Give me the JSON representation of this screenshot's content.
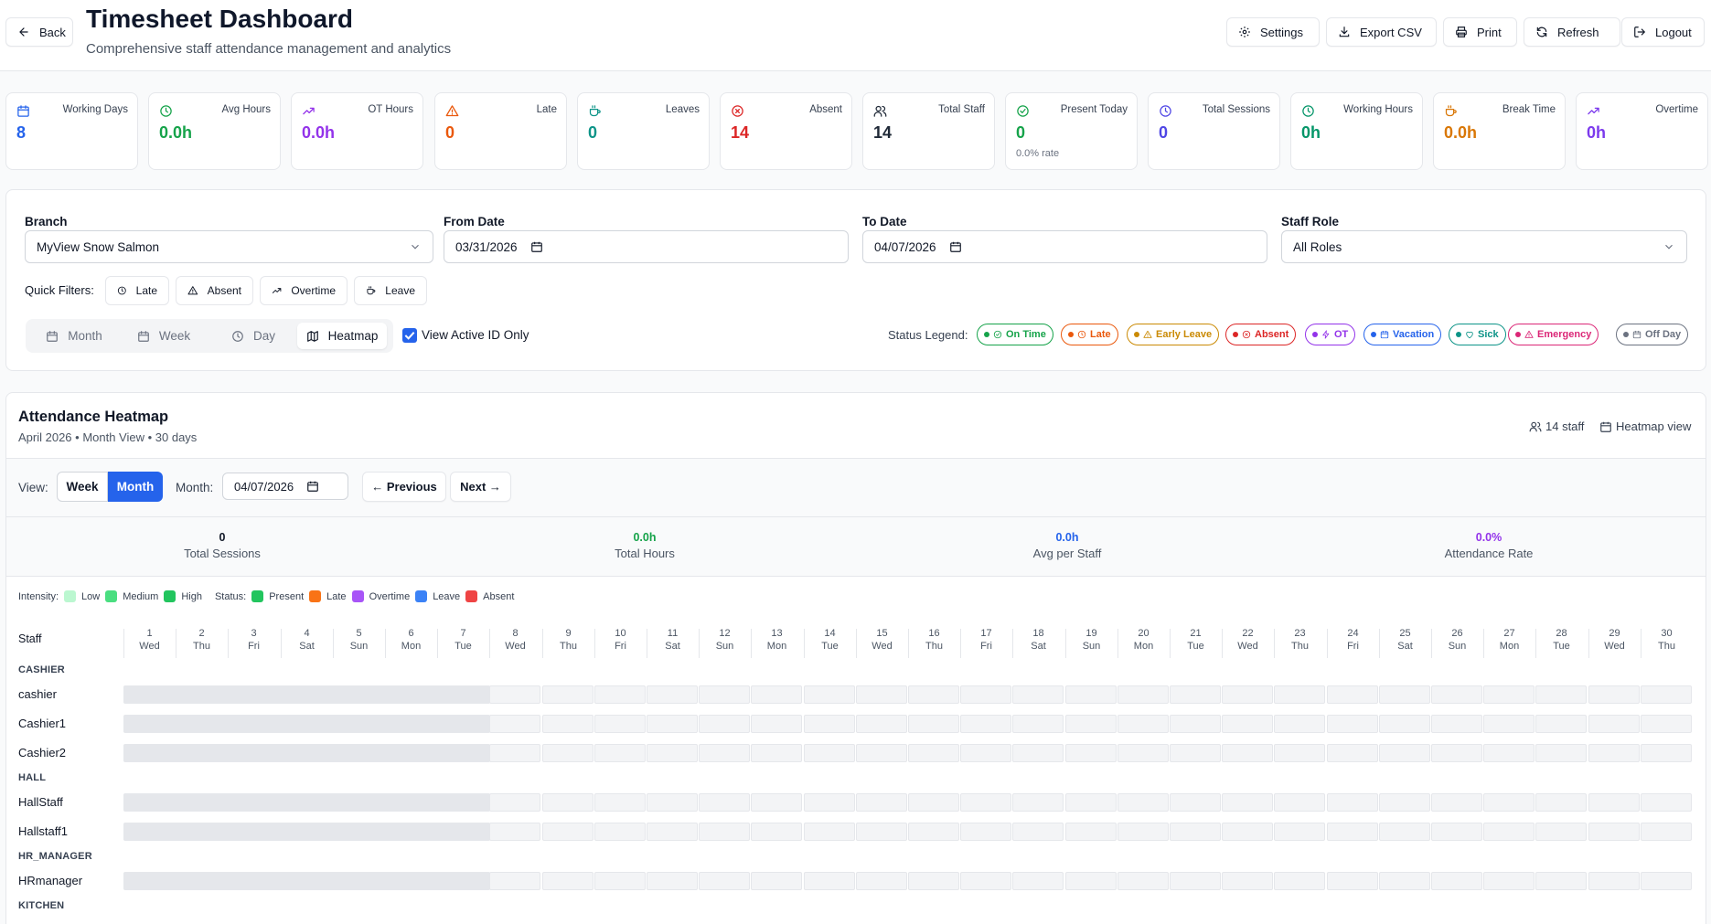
{
  "header": {
    "back_label": "Back",
    "title": "Timesheet Dashboard",
    "subtitle": "Comprehensive staff attendance management and analytics",
    "actions": [
      {
        "label": "Settings",
        "icon": "gear-icon"
      },
      {
        "label": "Export CSV",
        "icon": "download-icon"
      },
      {
        "label": "Print",
        "icon": "printer-icon"
      },
      {
        "label": "Refresh",
        "icon": "refresh-icon"
      },
      {
        "label": "Logout",
        "icon": "logout-icon"
      }
    ]
  },
  "stats": [
    {
      "label": "Working Days",
      "value": "8",
      "sub": "",
      "color": "#2563eb",
      "icon": "calendar-icon"
    },
    {
      "label": "Avg Hours",
      "value": "0.0h",
      "sub": "",
      "color": "#16a34a",
      "icon": "clock-icon"
    },
    {
      "label": "OT Hours",
      "value": "0.0h",
      "sub": "",
      "color": "#9333ea",
      "icon": "trending-up-icon"
    },
    {
      "label": "Late",
      "value": "0",
      "sub": "",
      "color": "#ea580c",
      "icon": "alert-triangle-icon"
    },
    {
      "label": "Leaves",
      "value": "0",
      "sub": "",
      "color": "#0d9488",
      "icon": "coffee-icon"
    },
    {
      "label": "Absent",
      "value": "14",
      "sub": "",
      "color": "#dc2626",
      "icon": "x-circle-icon"
    },
    {
      "label": "Total Staff",
      "value": "14",
      "sub": "",
      "color": "#1f2937",
      "icon": "users-icon"
    },
    {
      "label": "Present Today",
      "value": "0",
      "sub": "0.0% rate",
      "color": "#16a34a",
      "icon": "check-circle-icon"
    },
    {
      "label": "Total Sessions",
      "value": "0",
      "sub": "",
      "color": "#4f46e5",
      "icon": "clock-icon"
    },
    {
      "label": "Working Hours",
      "value": "0h",
      "sub": "",
      "color": "#059669",
      "icon": "clock-icon"
    },
    {
      "label": "Break Time",
      "value": "0.0h",
      "sub": "",
      "color": "#d97706",
      "icon": "coffee-icon"
    },
    {
      "label": "Overtime",
      "value": "0h",
      "sub": "",
      "color": "#7c3aed",
      "icon": "trending-up-icon"
    }
  ],
  "filters": {
    "branch_label": "Branch",
    "branch_value": "MyView Snow Salmon",
    "from_label": "From Date",
    "from_value": "03/31/2026",
    "to_label": "To Date",
    "to_value": "04/07/2026",
    "role_label": "Staff Role",
    "role_value": "All Roles",
    "quick_label": "Quick Filters:",
    "quick": [
      {
        "label": "Late",
        "icon": "clock-icon"
      },
      {
        "label": "Absent",
        "icon": "alert-triangle-icon"
      },
      {
        "label": "Overtime",
        "icon": "trending-up-icon"
      },
      {
        "label": "Leave",
        "icon": "coffee-icon"
      }
    ],
    "views": [
      {
        "label": "Month",
        "icon": "calendar-icon",
        "active": false
      },
      {
        "label": "Week",
        "icon": "calendar-icon",
        "active": false
      },
      {
        "label": "Day",
        "icon": "clock-icon",
        "active": false
      },
      {
        "label": "Heatmap",
        "icon": "map-icon",
        "active": true
      }
    ],
    "active_only_label": "View Active ID Only",
    "active_only_checked": true,
    "legend_label": "Status Legend:",
    "legend": [
      {
        "label": "On Time",
        "color": "#16a34a",
        "icon": "check-circle-icon"
      },
      {
        "label": "Late",
        "color": "#ea580c",
        "icon": "clock-icon"
      },
      {
        "label": "Early Leave",
        "color": "#ca8a04",
        "icon": "alert-triangle-icon"
      },
      {
        "label": "Absent",
        "color": "#dc2626",
        "icon": "x-circle-icon"
      },
      {
        "label": "OT",
        "color": "#9333ea",
        "icon": "zap-icon"
      },
      {
        "label": "Vacation",
        "color": "#2563eb",
        "icon": "calendar-icon"
      },
      {
        "label": "Sick",
        "color": "#0d9488",
        "icon": "heart-icon"
      },
      {
        "label": "Emergency",
        "color": "#db2777",
        "icon": "alert-triangle-icon"
      },
      {
        "label": "Off Day",
        "color": "#6b7280",
        "icon": "calendar-icon"
      }
    ]
  },
  "heatmap": {
    "title": "Attendance Heatmap",
    "subtitle": "April 2026 • Month View • 30 days",
    "staff_count": "14 staff",
    "view_label": "Heatmap view",
    "view_prefix": "View:",
    "week_label": "Week",
    "month_label": "Month",
    "month_field_label": "Month:",
    "month_value": "04/07/2026",
    "prev_label": "← Previous",
    "next_label": "Next →",
    "summary": [
      {
        "value": "0",
        "label": "Total Sessions",
        "color": "#111827"
      },
      {
        "value": "0.0h",
        "label": "Total Hours",
        "color": "#16a34a"
      },
      {
        "value": "0.0h",
        "label": "Avg per Staff",
        "color": "#2563eb"
      },
      {
        "value": "0.0%",
        "label": "Attendance Rate",
        "color": "#9333ea"
      }
    ],
    "intensity_label": "Intensity:",
    "intensity": [
      {
        "label": "Low",
        "color": "#bbf7d0"
      },
      {
        "label": "Medium",
        "color": "#4ade80"
      },
      {
        "label": "High",
        "color": "#22c55e"
      }
    ],
    "status_label": "Status:",
    "status": [
      {
        "label": "Present",
        "color": "#22c55e"
      },
      {
        "label": "Late",
        "color": "#f97316"
      },
      {
        "label": "Overtime",
        "color": "#a855f7"
      },
      {
        "label": "Leave",
        "color": "#3b82f6"
      },
      {
        "label": "Absent",
        "color": "#ef4444"
      }
    ],
    "staff_header": "Staff",
    "days": [
      {
        "d": "1",
        "w": "Wed"
      },
      {
        "d": "2",
        "w": "Thu"
      },
      {
        "d": "3",
        "w": "Fri"
      },
      {
        "d": "4",
        "w": "Sat"
      },
      {
        "d": "5",
        "w": "Sun"
      },
      {
        "d": "6",
        "w": "Mon"
      },
      {
        "d": "7",
        "w": "Tue"
      },
      {
        "d": "8",
        "w": "Wed"
      },
      {
        "d": "9",
        "w": "Thu"
      },
      {
        "d": "10",
        "w": "Fri"
      },
      {
        "d": "11",
        "w": "Sat"
      },
      {
        "d": "12",
        "w": "Sun"
      },
      {
        "d": "13",
        "w": "Mon"
      },
      {
        "d": "14",
        "w": "Tue"
      },
      {
        "d": "15",
        "w": "Wed"
      },
      {
        "d": "16",
        "w": "Thu"
      },
      {
        "d": "17",
        "w": "Fri"
      },
      {
        "d": "18",
        "w": "Sat"
      },
      {
        "d": "19",
        "w": "Sun"
      },
      {
        "d": "20",
        "w": "Mon"
      },
      {
        "d": "21",
        "w": "Tue"
      },
      {
        "d": "22",
        "w": "Wed"
      },
      {
        "d": "23",
        "w": "Thu"
      },
      {
        "d": "24",
        "w": "Fri"
      },
      {
        "d": "25",
        "w": "Sat"
      },
      {
        "d": "26",
        "w": "Sun"
      },
      {
        "d": "27",
        "w": "Mon"
      },
      {
        "d": "28",
        "w": "Tue"
      },
      {
        "d": "29",
        "w": "Wed"
      },
      {
        "d": "30",
        "w": "Thu"
      }
    ],
    "groups": [
      {
        "name": "CASHIER",
        "staff": [
          "cashier",
          "Cashier1",
          "Cashier2"
        ]
      },
      {
        "name": "HALL",
        "staff": [
          "HallStaff",
          "Hallstaff1"
        ]
      },
      {
        "name": "HR_MANAGER",
        "staff": [
          "HRmanager"
        ]
      },
      {
        "name": "KITCHEN",
        "staff": []
      }
    ]
  }
}
